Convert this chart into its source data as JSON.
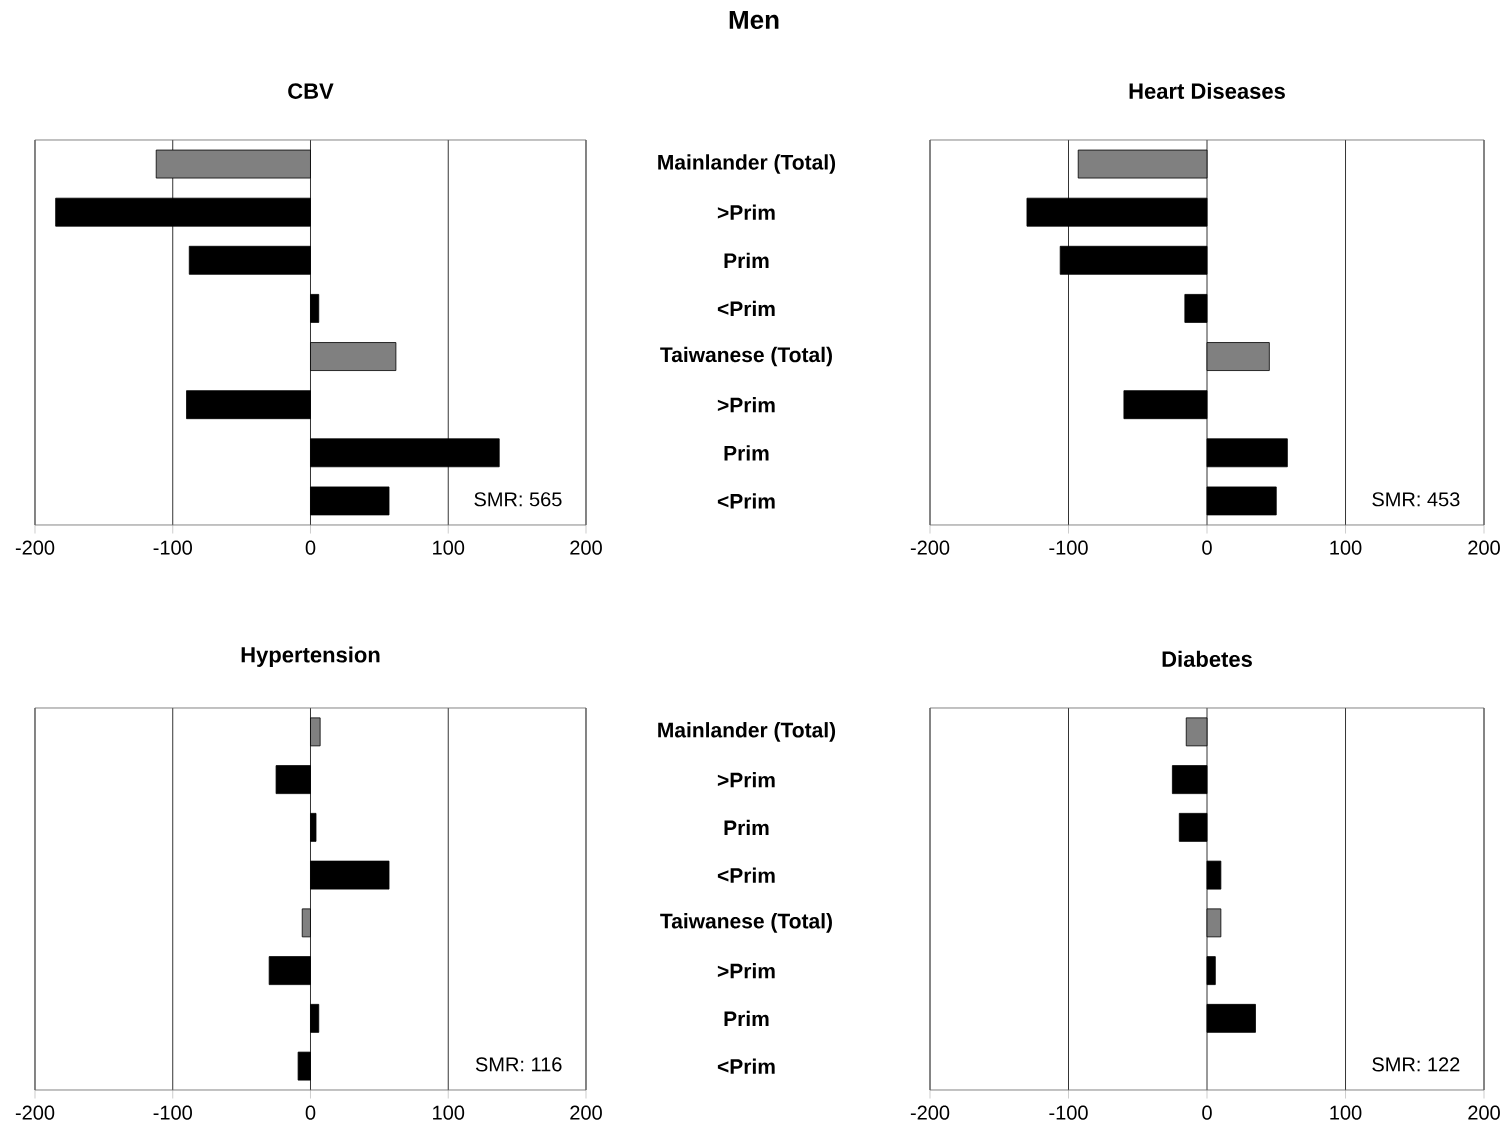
{
  "chart_data": [
    {
      "type": "other",
      "title": "Men"
    },
    {
      "type": "bar",
      "orientation": "horizontal",
      "title": "CBV",
      "categories": [
        null,
        null,
        null,
        null,
        null,
        null,
        null,
        null
      ],
      "values": [
        -112,
        -185,
        -88,
        6,
        62,
        -90,
        137,
        57
      ],
      "colors": [
        "#808080",
        "#000000",
        "#000000",
        "#000000",
        "#808080",
        "#000000",
        "#000000",
        "#000000"
      ],
      "xlim": [
        -200,
        200
      ],
      "xticks": [
        -200,
        -100,
        0,
        100,
        200
      ],
      "grid": "x",
      "tick_labels": "x",
      "annotations": [
        "SMR: 565"
      ]
    },
    {
      "type": "bar",
      "orientation": "horizontal",
      "title": "Heart Diseases",
      "categories": [
        "Mainlander (Total)",
        ">Prim",
        "Prim",
        "<Prim",
        "Taiwanese (Total)",
        ">Prim",
        "Prim",
        "<Prim"
      ],
      "values": [
        -93,
        -130,
        -106,
        -16,
        45,
        -60,
        58,
        50
      ],
      "colors": [
        "#808080",
        "#000000",
        "#000000",
        "#000000",
        "#808080",
        "#000000",
        "#000000",
        "#000000"
      ],
      "xlim": [
        -200,
        200
      ],
      "xticks": [
        -200,
        -100,
        0,
        100,
        200
      ],
      "grid": "x",
      "annotations": [
        "SMR: 453"
      ]
    },
    {
      "type": "bar",
      "orientation": "horizontal",
      "title": "Hypertension",
      "categories": [
        null,
        null,
        null,
        null,
        null,
        null,
        null,
        null
      ],
      "values": [
        7,
        -25,
        4,
        57,
        -6,
        -30,
        6,
        -9
      ],
      "colors": [
        "#808080",
        "#000000",
        "#000000",
        "#000000",
        "#808080",
        "#000000",
        "#000000",
        "#000000"
      ],
      "xlim": [
        -200,
        200
      ],
      "xticks": [
        -200,
        -100,
        0,
        100,
        200
      ],
      "grid": "x",
      "tick_labels": "x",
      "annotations": [
        "SMR: 116"
      ]
    },
    {
      "type": "bar",
      "orientation": "horizontal",
      "title": "Diabetes",
      "categories": [
        "Mainlander (Total)",
        ">Prim",
        "Prim",
        "<Prim",
        "Taiwanese (Total)",
        ">Prim",
        "Prim",
        "<Prim"
      ],
      "values": [
        -15,
        -25,
        -20,
        10,
        10,
        6,
        35,
        null
      ],
      "colors": [
        "#808080",
        "#000000",
        "#000000",
        "#000000",
        "#808080",
        "#000000",
        "#000000",
        "#000000"
      ],
      "xlim": [
        -200,
        200
      ],
      "xticks": [
        -200,
        -100,
        0,
        100,
        200
      ],
      "grid": "x",
      "annotations": [
        "SMR: 122"
      ]
    }
  ]
}
